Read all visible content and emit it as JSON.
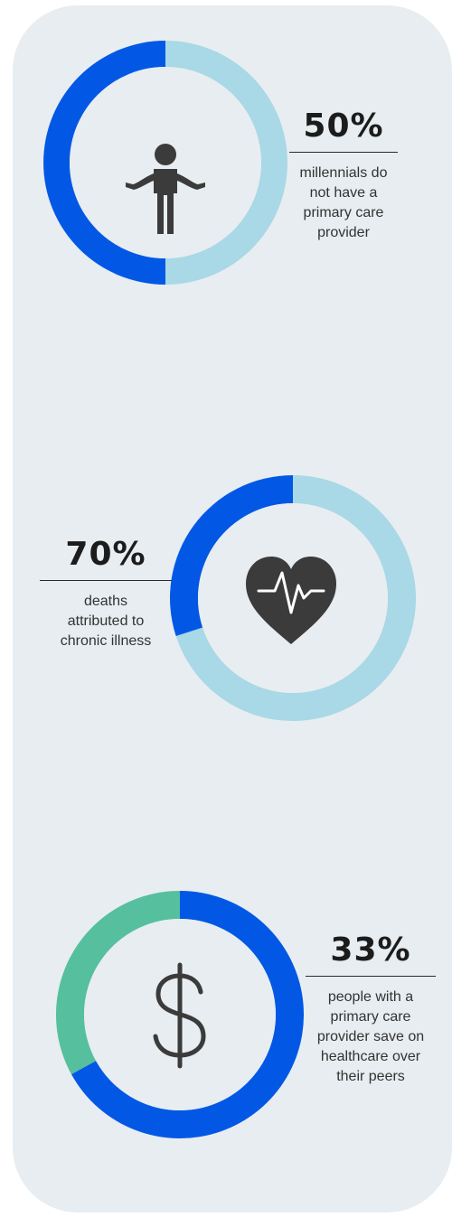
{
  "colors": {
    "card_bg": "#e7edf0",
    "blue": "#0258e5",
    "light_blue": "#a9d8e6",
    "green": "#55bf9e",
    "icon": "#3b3b3b"
  },
  "stats": [
    {
      "value": "50%",
      "description": "millennials do not have a primary care provider",
      "icon": "person-shrug-icon"
    },
    {
      "value": "70%",
      "description": "deaths attributed to chronic illness",
      "icon": "heartbeat-icon"
    },
    {
      "value": "33%",
      "description": "people with a primary care provider save on healthcare over their peers",
      "icon": "dollar-sign-icon"
    }
  ],
  "chart_data": [
    {
      "type": "pie",
      "labels": [
        "",
        ""
      ],
      "values": [
        50,
        50
      ],
      "colors": [
        "#a9d8e6",
        "#0258e5"
      ]
    },
    {
      "type": "pie",
      "labels": [
        "",
        ""
      ],
      "values": [
        70,
        30
      ],
      "colors": [
        "#a9d8e6",
        "#0258e5"
      ]
    },
    {
      "type": "pie",
      "labels": [
        "",
        ""
      ],
      "values": [
        67,
        33
      ],
      "colors": [
        "#0258e5",
        "#55bf9e"
      ]
    }
  ]
}
